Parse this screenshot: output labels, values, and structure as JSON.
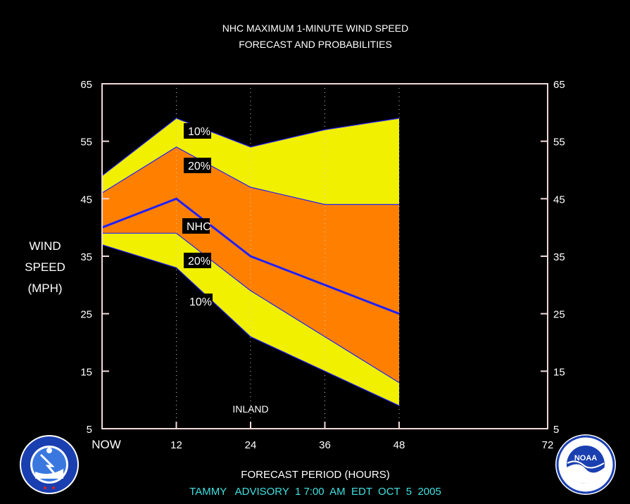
{
  "chart_data": {
    "type": "area",
    "title": "NHC MAXIMUM 1-MINUTE WIND SPEED",
    "subtitle": "FORECAST AND PROBABILITIES",
    "ylabel_lines": [
      "WIND",
      "SPEED",
      "(MPH)"
    ],
    "xlabel": "FORECAST PERIOD (HOURS)",
    "footer": "TAMMY   ADVISORY  1 7:00  AM  EDT  OCT  5  2005",
    "x_ticks": [
      {
        "x": 0,
        "label": "NOW"
      },
      {
        "x": 12,
        "label": "12"
      },
      {
        "x": 24,
        "label": "24"
      },
      {
        "x": 36,
        "label": "36"
      },
      {
        "x": 48,
        "label": "48"
      },
      {
        "x": 72,
        "label": "72"
      }
    ],
    "y_ticks": [
      5,
      15,
      25,
      35,
      45,
      55,
      65
    ],
    "xlim": [
      0,
      72
    ],
    "ylim": [
      5,
      65
    ],
    "x": [
      0,
      12,
      24,
      36,
      48
    ],
    "series": [
      {
        "name": "10%",
        "position": "upper",
        "values": [
          49,
          59,
          54,
          57,
          59
        ]
      },
      {
        "name": "20%",
        "position": "upper",
        "values": [
          46,
          54,
          47,
          44,
          44
        ]
      },
      {
        "name": "NHC",
        "values": [
          40,
          45,
          35,
          30,
          25
        ]
      },
      {
        "name": "20%",
        "position": "lower",
        "values": [
          39,
          39,
          29,
          21,
          13
        ]
      },
      {
        "name": "10%",
        "position": "lower",
        "values": [
          37,
          33,
          21,
          15,
          9
        ]
      }
    ],
    "annotations": [
      {
        "text": "INLAND",
        "x": 24
      }
    ],
    "colors": {
      "outer_band": "#f0f000",
      "inner_band": "#ff8000",
      "forecast_line": "#2020ff",
      "frame": "#f0d8d8",
      "label_bg": "#000000",
      "label_text": "#ffffff",
      "footer_text": "#40e0e0"
    },
    "grid": "dotted vertical at 12h intervals"
  },
  "logos": {
    "left": {
      "icon": "nws-logo",
      "text": "NATIONAL WEATHER SERVICE"
    },
    "right": {
      "icon": "noaa-logo",
      "text": "NOAA"
    }
  }
}
